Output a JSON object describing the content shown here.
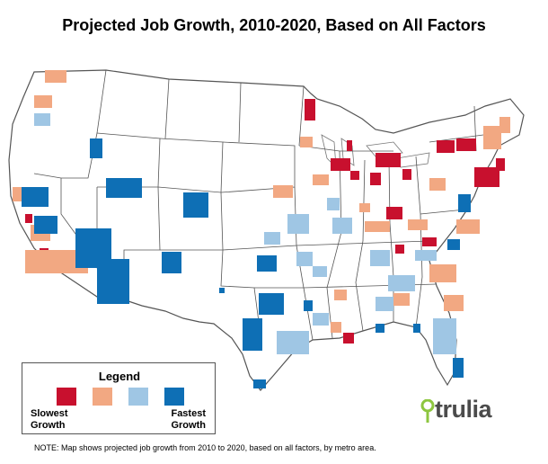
{
  "title": "Projected Job Growth, 2010-2020, Based on All Factors",
  "colors": {
    "slowest": "#c8102e",
    "slow": "#f2a882",
    "fast": "#9fc6e4",
    "fastest": "#0e6fb5",
    "border": "#555555",
    "county": "#d8d8d8"
  },
  "legend": {
    "title": "Legend",
    "low_label_1": "Slowest",
    "low_label_2": "Growth",
    "high_label_1": "Fastest",
    "high_label_2": "Growth"
  },
  "logo": {
    "text": "trulia",
    "icon": "location-pin-icon"
  },
  "note": "NOTE: Map shows projected job growth from 2010 to 2020, based on all factors, by metro area."
}
